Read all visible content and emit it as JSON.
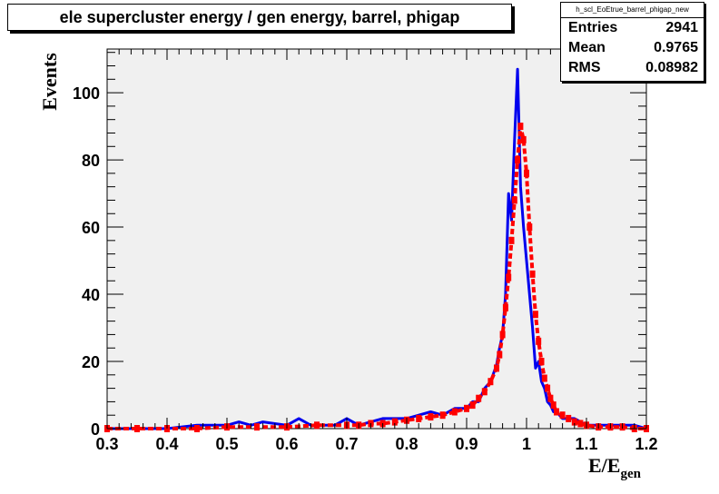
{
  "title": "ele supercluster energy / gen energy, barrel, phigap",
  "stats": {
    "name": "h_scl_EoEtrue_barrel_phigap_new",
    "rows": [
      {
        "label": "Entries",
        "value": "2941"
      },
      {
        "label": "Mean",
        "value": "0.9765"
      },
      {
        "label": "RMS",
        "value": "0.08982"
      }
    ]
  },
  "colors": {
    "frame_bg": "#f0f0f0",
    "series_blue": "#0000ee",
    "series_red": "#ff0000"
  },
  "chart_data": {
    "type": "line",
    "title": "ele supercluster energy / gen energy, barrel, phigap",
    "xlabel_main": "E/E",
    "xlabel_sub": "gen",
    "ylabel": "Events",
    "xlim": [
      0.3,
      1.2
    ],
    "ylim": [
      0,
      113
    ],
    "x_ticks": [
      "0.3",
      "0.4",
      "0.5",
      "0.6",
      "0.7",
      "0.8",
      "0.9",
      "1",
      "1.1",
      "1.2"
    ],
    "y_ticks": [
      "0",
      "20",
      "40",
      "60",
      "80",
      "100"
    ],
    "grid": false,
    "series": [
      {
        "style": "histogram-line",
        "color": "#0000ee",
        "x": [
          0.3,
          0.35,
          0.4,
          0.45,
          0.5,
          0.52,
          0.54,
          0.56,
          0.6,
          0.62,
          0.64,
          0.66,
          0.68,
          0.7,
          0.72,
          0.74,
          0.76,
          0.78,
          0.8,
          0.82,
          0.84,
          0.86,
          0.88,
          0.9,
          0.91,
          0.92,
          0.93,
          0.94,
          0.95,
          0.955,
          0.96,
          0.965,
          0.97,
          0.975,
          0.98,
          0.985,
          0.99,
          0.995,
          1.0,
          1.005,
          1.01,
          1.015,
          1.02,
          1.025,
          1.03,
          1.035,
          1.04,
          1.045,
          1.05,
          1.06,
          1.07,
          1.08,
          1.09,
          1.1,
          1.12,
          1.14,
          1.16,
          1.18,
          1.2
        ],
        "y": [
          0,
          0,
          0,
          1,
          1,
          2,
          1,
          2,
          1,
          3,
          1,
          1,
          1,
          3,
          1,
          2,
          3,
          3,
          3,
          4,
          5,
          4,
          6,
          6,
          8,
          8,
          12,
          14,
          19,
          24,
          28,
          40,
          70,
          62,
          86,
          107,
          72,
          60,
          50,
          40,
          30,
          18,
          20,
          14,
          12,
          8,
          7,
          5,
          5,
          3,
          3,
          3,
          2,
          1,
          1,
          1,
          1,
          1,
          0
        ]
      },
      {
        "style": "markers",
        "color": "#ff0000",
        "x": [
          0.3,
          0.35,
          0.4,
          0.45,
          0.5,
          0.55,
          0.6,
          0.65,
          0.7,
          0.72,
          0.74,
          0.76,
          0.78,
          0.8,
          0.82,
          0.84,
          0.86,
          0.88,
          0.9,
          0.91,
          0.92,
          0.93,
          0.94,
          0.95,
          0.955,
          0.96,
          0.965,
          0.97,
          0.975,
          0.98,
          0.985,
          0.99,
          0.995,
          1.0,
          1.005,
          1.01,
          1.015,
          1.02,
          1.025,
          1.03,
          1.035,
          1.04,
          1.045,
          1.05,
          1.06,
          1.07,
          1.08,
          1.09,
          1.1,
          1.12,
          1.14,
          1.16,
          1.18,
          1.2
        ],
        "y": [
          0,
          0,
          0,
          0,
          0.5,
          0.5,
          0.5,
          1,
          1,
          1,
          1.5,
          1.5,
          2,
          2.5,
          3,
          3.5,
          4,
          5,
          6,
          7,
          9,
          11,
          14,
          18,
          22,
          28,
          36,
          45,
          56,
          68,
          80,
          90,
          86,
          76,
          60,
          46,
          34,
          26,
          20,
          15,
          12,
          9,
          7,
          5,
          4,
          3,
          2,
          1.5,
          1,
          0.5,
          0.5,
          0.5,
          0,
          0
        ]
      }
    ]
  }
}
